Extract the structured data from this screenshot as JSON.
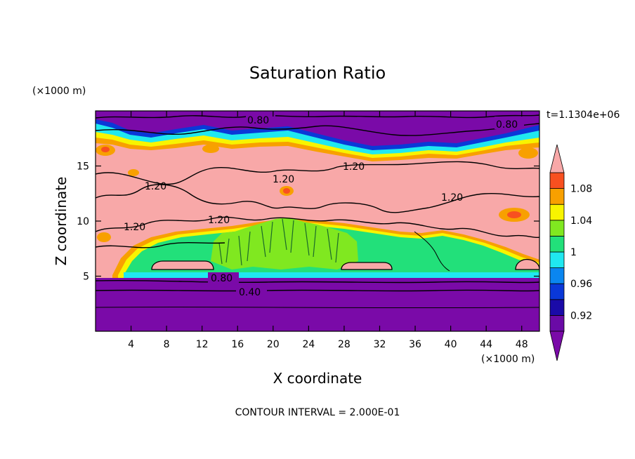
{
  "chart_data": {
    "type": "heatmap",
    "title": "Saturation Ratio",
    "xlabel": "X coordinate",
    "ylabel": "Z coordinate",
    "x_unit": "(×1000 m)",
    "y_unit": "(×1000 m)",
    "time_label": "t=1.1304e+06",
    "footer": "CONTOUR INTERVAL = 2.000E-01",
    "xlim": [
      0,
      50
    ],
    "ylim": [
      0,
      20
    ],
    "x_ticks": [
      4,
      8,
      12,
      16,
      20,
      24,
      28,
      32,
      36,
      40,
      44,
      48
    ],
    "y_ticks": [
      5,
      10,
      15
    ],
    "colorbar": {
      "levels": [
        0.92,
        0.96,
        1,
        1.04,
        1.08
      ],
      "bins": [
        {
          "lo": 0.9,
          "hi": 0.92,
          "color": "#6a0aa6"
        },
        {
          "lo": 0.92,
          "hi": 0.94,
          "color": "#1a0aa8"
        },
        {
          "lo": 0.94,
          "hi": 0.96,
          "color": "#0a38d8"
        },
        {
          "lo": 0.96,
          "hi": 0.98,
          "color": "#0a86f0"
        },
        {
          "lo": 0.98,
          "hi": 1.0,
          "color": "#20e8f0"
        },
        {
          "lo": 1.0,
          "hi": 1.02,
          "color": "#22e07a"
        },
        {
          "lo": 1.02,
          "hi": 1.04,
          "color": "#80e820"
        },
        {
          "lo": 1.04,
          "hi": 1.06,
          "color": "#f8f400"
        },
        {
          "lo": 1.06,
          "hi": 1.08,
          "color": "#f8a000"
        },
        {
          "lo": 1.08,
          "hi": 1.1,
          "color": "#f85020"
        }
      ],
      "under_color": "#7a0aa8",
      "over_color": "#f8a8a8"
    },
    "contour_labels": [
      "0.80",
      "0.80",
      "1.20",
      "1.20",
      "1.20",
      "1.20",
      "1.20",
      "1.20",
      "0.80",
      "0.40"
    ]
  }
}
